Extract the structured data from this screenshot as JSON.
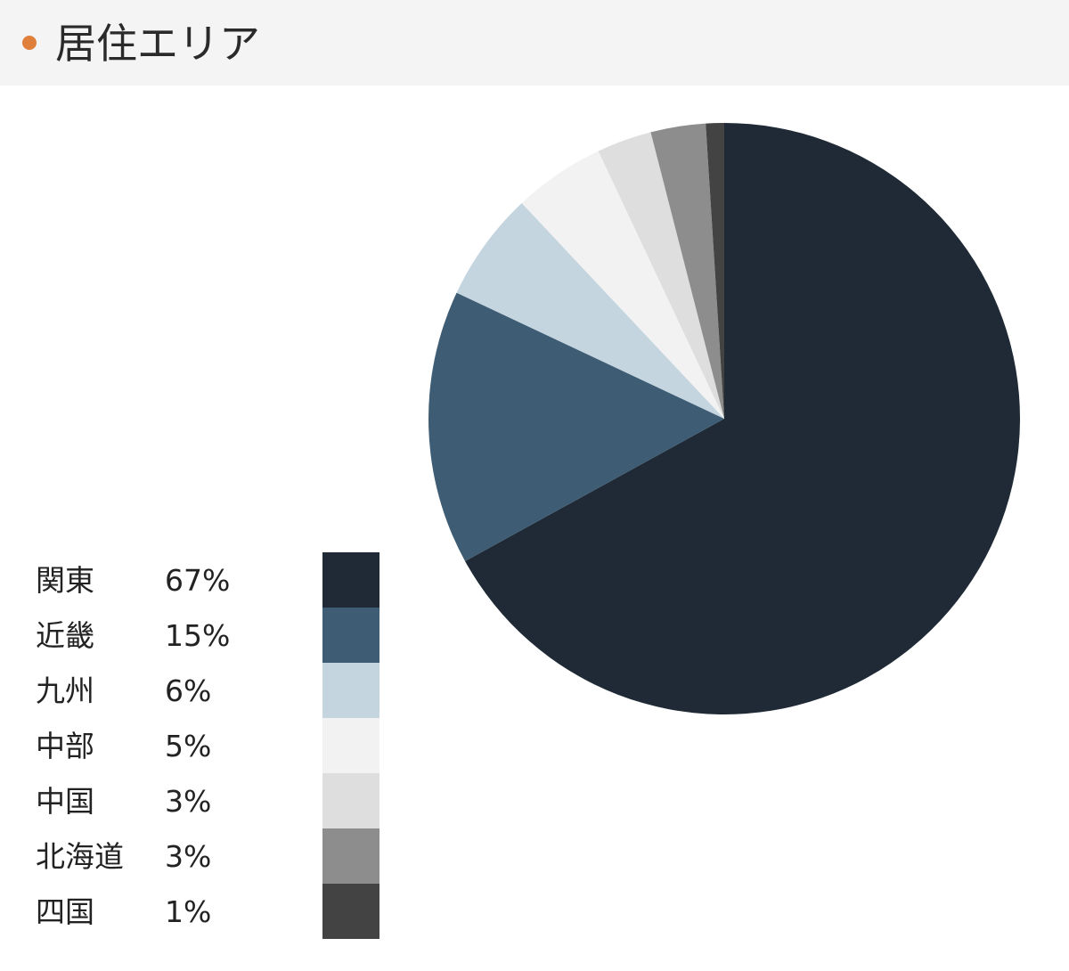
{
  "header": {
    "title": "居住エリア",
    "dot_color": "#e07f3a"
  },
  "chart_data": {
    "type": "pie",
    "title": "居住エリア",
    "start": "top",
    "direction": "clockwise",
    "legend_position": "bottom-left",
    "slices": [
      {
        "label": "関東",
        "value": 67,
        "display": "67%",
        "color": "#1f2a36"
      },
      {
        "label": "近畿",
        "value": 15,
        "display": "15%",
        "color": "#3e5d74"
      },
      {
        "label": "九州",
        "value": 6,
        "display": "6%",
        "color": "#c4d5e0"
      },
      {
        "label": "中部",
        "value": 5,
        "display": "5%",
        "color": "#f2f2f2"
      },
      {
        "label": "中国",
        "value": 3,
        "display": "3%",
        "color": "#dedede"
      },
      {
        "label": "北海道",
        "value": 3,
        "display": "3%",
        "color": "#8d8d8d"
      },
      {
        "label": "四国",
        "value": 1,
        "display": "1%",
        "color": "#434343"
      }
    ]
  }
}
